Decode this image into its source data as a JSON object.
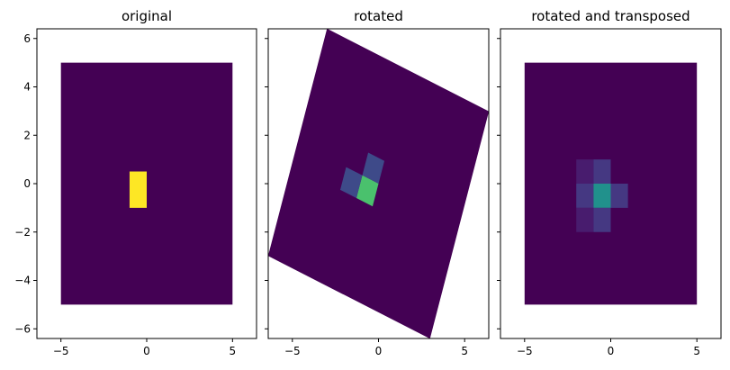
{
  "chart_data": [
    {
      "type": "heatmap",
      "title": "original",
      "xlim": [
        -6.4,
        6.4
      ],
      "ylim": [
        -6.4,
        6.4
      ],
      "xticks": [
        -5,
        0,
        5
      ],
      "yticks": [
        -6,
        -4,
        -2,
        0,
        2,
        4,
        6
      ],
      "extent": [
        -5,
        5,
        -5,
        5
      ],
      "rotation_deg": 0,
      "background_color": "#440154",
      "cells": [
        {
          "x": [
            -1,
            0
          ],
          "y": [
            -1,
            0.5
          ],
          "color": "#fde725"
        }
      ]
    },
    {
      "type": "heatmap",
      "title": "rotated",
      "xlim": [
        -6.4,
        6.4
      ],
      "ylim": [
        -6.4,
        6.4
      ],
      "xticks": [
        -5,
        0,
        5
      ],
      "yticks": [
        -6,
        -4,
        -2,
        0,
        2,
        4,
        6
      ],
      "extent": [
        -5,
        5,
        -5,
        5
      ],
      "rotation_deg": -20,
      "background_color": "#440154",
      "cells": [
        {
          "x": [
            -1,
            0
          ],
          "y": [
            0,
            1
          ],
          "color": "#3e4a89"
        },
        {
          "x": [
            -1,
            0
          ],
          "y": [
            -1,
            0
          ],
          "color": "#4ac16d"
        },
        {
          "x": [
            -2,
            -1
          ],
          "y": [
            -1,
            0
          ],
          "color": "#3e4a89"
        }
      ]
    },
    {
      "type": "heatmap",
      "title": "rotated and transposed",
      "xlim": [
        -6.4,
        6.4
      ],
      "ylim": [
        -6.4,
        6.4
      ],
      "xticks": [
        -5,
        0,
        5
      ],
      "yticks": [
        -6,
        -4,
        -2,
        0,
        2,
        4,
        6
      ],
      "extent": [
        -5,
        5,
        -5,
        5
      ],
      "rotation_deg": 0,
      "background_color": "#440154",
      "cells": [
        {
          "x": [
            -2,
            -1
          ],
          "y": [
            0,
            1
          ],
          "color": "#481c6e"
        },
        {
          "x": [
            -1,
            0
          ],
          "y": [
            0,
            1
          ],
          "color": "#453882"
        },
        {
          "x": [
            -2,
            -1
          ],
          "y": [
            -1,
            0
          ],
          "color": "#453882"
        },
        {
          "x": [
            -1,
            0
          ],
          "y": [
            -1,
            0
          ],
          "color": "#21918c"
        },
        {
          "x": [
            0,
            1
          ],
          "y": [
            -1,
            0
          ],
          "color": "#453882"
        },
        {
          "x": [
            -2,
            -1
          ],
          "y": [
            -2,
            -1
          ],
          "color": "#481c6e"
        },
        {
          "x": [
            -1,
            0
          ],
          "y": [
            -2,
            -1
          ],
          "color": "#453882"
        }
      ]
    }
  ]
}
